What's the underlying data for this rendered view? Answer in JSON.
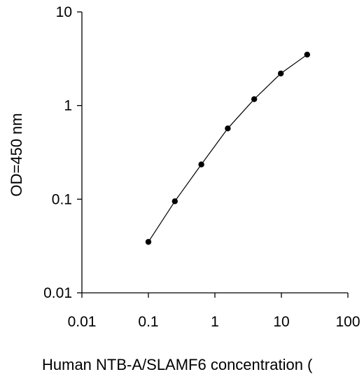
{
  "chart_data": {
    "type": "line",
    "xscale": "log",
    "yscale": "log",
    "xlim": [
      0.01,
      100
    ],
    "ylim": [
      0.01,
      10
    ],
    "xticks": [
      "0.01",
      "0.1",
      "1",
      "10",
      "100"
    ],
    "yticks": [
      "0.01",
      "0.1",
      "1",
      "10"
    ],
    "xlabel": "Human NTB-A/SLAMF6 concentration (",
    "ylabel": "OD=450 nm",
    "grid": false,
    "series": [
      {
        "x": [
          0.1,
          0.25,
          0.625,
          1.5625,
          3.9,
          9.8,
          24.4
        ],
        "y": [
          0.035,
          0.095,
          0.235,
          0.57,
          1.17,
          2.2,
          3.5
        ]
      }
    ],
    "colors": {
      "line": "#000000",
      "marker": "#000000"
    }
  }
}
